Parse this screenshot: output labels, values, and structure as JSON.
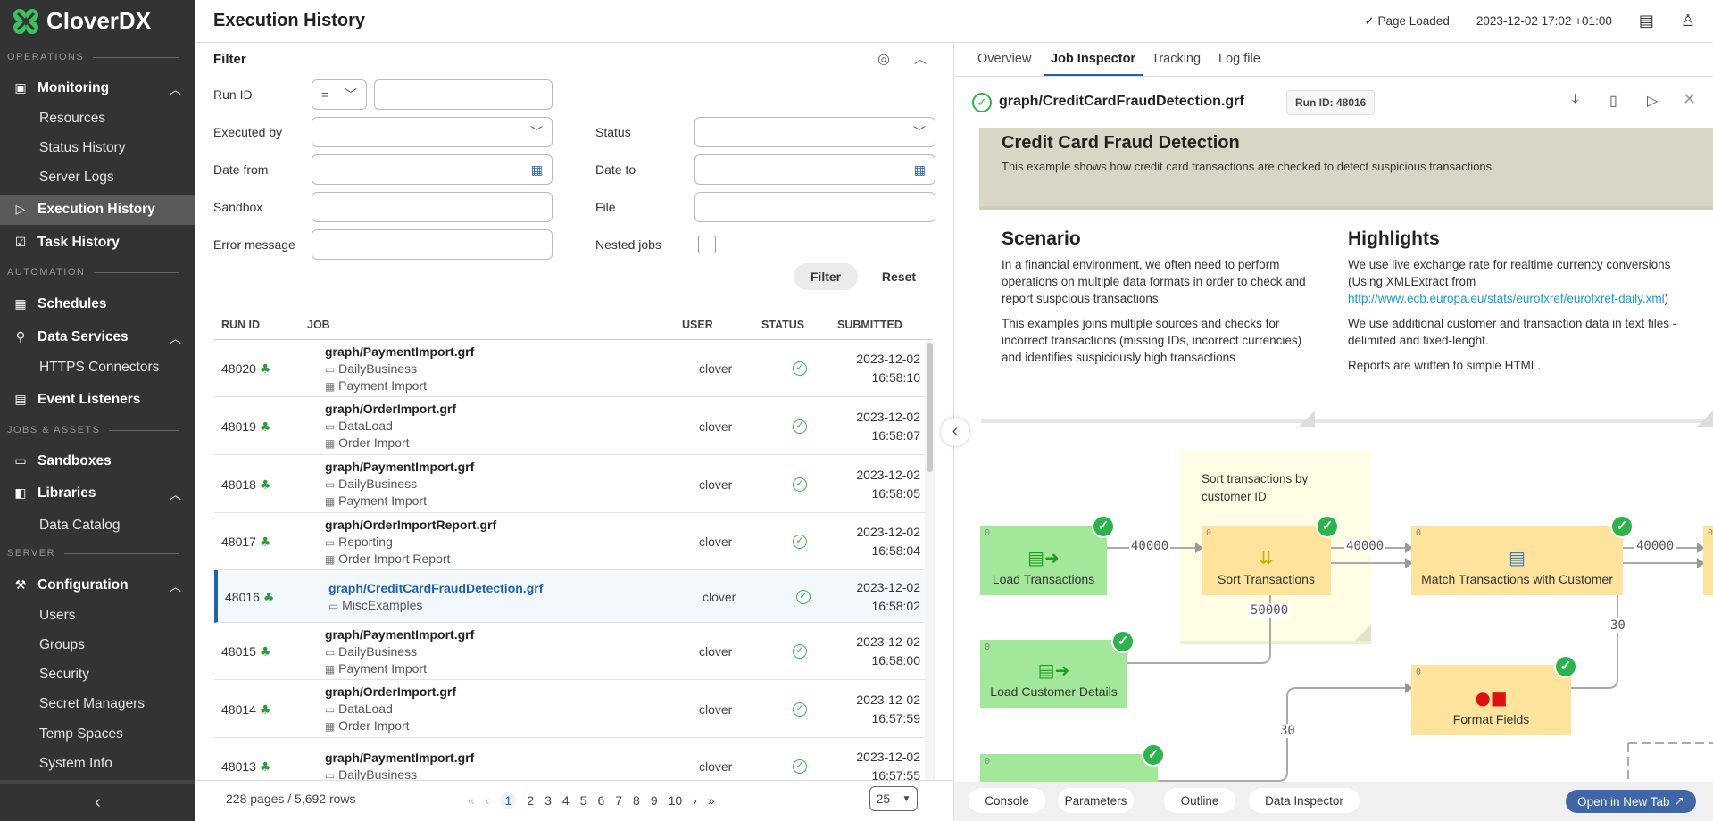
{
  "app": {
    "brand": "CloverDX",
    "title": "Execution History",
    "status": "Page Loaded",
    "datetime": "2023-12-02 17:02 +01:00"
  },
  "sidebar": {
    "sections": [
      "OPERATIONS",
      "AUTOMATION",
      "JOBS & ASSETS",
      "SERVER"
    ],
    "items": {
      "monitoring": "Monitoring",
      "resources": "Resources",
      "status_history": "Status History",
      "server_logs": "Server Logs",
      "execution_history": "Execution History",
      "task_history": "Task History",
      "schedules": "Schedules",
      "data_services": "Data Services",
      "https_connectors": "HTTPS Connectors",
      "event_listeners": "Event Listeners",
      "sandboxes": "Sandboxes",
      "libraries": "Libraries",
      "data_catalog": "Data Catalog",
      "configuration": "Configuration",
      "users": "Users",
      "groups": "Groups",
      "security": "Security",
      "secret_managers": "Secret Managers",
      "temp_spaces": "Temp Spaces",
      "system_info": "System Info"
    }
  },
  "filter": {
    "title": "Filter",
    "run_id": "Run ID",
    "run_id_op": "=",
    "executed_by": "Executed by",
    "status": "Status",
    "date_from": "Date from",
    "date_to": "Date to",
    "sandbox": "Sandbox",
    "file": "File",
    "error_message": "Error message",
    "nested_jobs": "Nested jobs",
    "filter_btn": "Filter",
    "reset_btn": "Reset"
  },
  "table": {
    "columns": [
      "RUN ID",
      "JOB",
      "USER",
      "STATUS",
      "SUBMITTED"
    ],
    "rows": [
      {
        "id": "48020",
        "job": "graph/PaymentImport.grf",
        "sandbox": "DailyBusiness",
        "schedule": "Payment Import",
        "user": "clover",
        "status": "success",
        "date": "2023-12-02",
        "time": "16:58:10"
      },
      {
        "id": "48019",
        "job": "graph/OrderImport.grf",
        "sandbox": "DataLoad",
        "schedule": "Order Import",
        "user": "clover",
        "status": "success",
        "date": "2023-12-02",
        "time": "16:58:07"
      },
      {
        "id": "48018",
        "job": "graph/PaymentImport.grf",
        "sandbox": "DailyBusiness",
        "schedule": "Payment Import",
        "user": "clover",
        "status": "success",
        "date": "2023-12-02",
        "time": "16:58:05"
      },
      {
        "id": "48017",
        "job": "graph/OrderImportReport.grf",
        "sandbox": "Reporting",
        "schedule": "Order Import Report",
        "user": "clover",
        "status": "success",
        "date": "2023-12-02",
        "time": "16:58:04"
      },
      {
        "id": "48016",
        "job": "graph/CreditCardFraudDetection.grf",
        "sandbox": "MiscExamples",
        "schedule": "",
        "user": "clover",
        "status": "success",
        "date": "2023-12-02",
        "time": "16:58:02",
        "selected": true
      },
      {
        "id": "48015",
        "job": "graph/PaymentImport.grf",
        "sandbox": "DailyBusiness",
        "schedule": "Payment Import",
        "user": "clover",
        "status": "success",
        "date": "2023-12-02",
        "time": "16:58:00"
      },
      {
        "id": "48014",
        "job": "graph/OrderImport.grf",
        "sandbox": "DataLoad",
        "schedule": "Order Import",
        "user": "clover",
        "status": "success",
        "date": "2023-12-02",
        "time": "16:57:59"
      },
      {
        "id": "48013",
        "job": "graph/PaymentImport.grf",
        "sandbox": "DailyBusiness",
        "schedule": "",
        "user": "clover",
        "status": "success",
        "date": "2023-12-02",
        "time": "16:57:55"
      }
    ]
  },
  "pagination": {
    "summary": "228 pages / 5,692 rows",
    "pages": [
      "1",
      "2",
      "3",
      "4",
      "5",
      "6",
      "7",
      "8",
      "9",
      "10"
    ],
    "current": "1",
    "page_size": "25"
  },
  "detail": {
    "tabs": [
      "Overview",
      "Job Inspector",
      "Tracking",
      "Log file"
    ],
    "active_tab": "Job Inspector",
    "job": "graph/CreditCardFraudDetection.grf",
    "run_id": "Run ID: 48016",
    "banner_title": "Credit Card Fraud Detection",
    "banner_text": "This example shows how credit card transactions are checked to detect suspicious transactions",
    "scenario_title": "Scenario",
    "scenario_p1": "In a financial environment, we often need to perform operations on multiple data formats in order to check and report suspcious transactions",
    "scenario_p2": "This examples joins multiple sources and checks for incorrect transactions (missing IDs, incorrect currencies) and identifies suspiciously high transactions",
    "highlights_title": "Highlights",
    "hl_p1": "We use live exchange rate for realtime currency conversions (Using XMLExtract from",
    "hl_link": "http://www.ecb.europa.eu/stats/eurofxref/eurofxref-daily.xml",
    "hl_p1_end": ")",
    "hl_p2": "We use additional customer and transaction data in text files - delimited and fixed-lenght.",
    "hl_p3": "Reports are written to simple HTML.",
    "note": "Sort transactions by customer ID",
    "nodes": {
      "load_transactions": "Load Transactions",
      "sort_transactions": "Sort Transactions",
      "match": "Match Transactions with Customer",
      "load_customer": "Load Customer Details",
      "format_fields": "Format Fields"
    },
    "port": "0",
    "edges": {
      "e1": "40000",
      "e2": "40000",
      "e3": "40000",
      "e4": "50000",
      "e5": "30",
      "e6": "30"
    },
    "bottom": {
      "console": "Console",
      "parameters": "Parameters",
      "outline": "Outline",
      "data_inspector": "Data Inspector",
      "open_new_tab": "Open in New Tab"
    }
  },
  "colors": {
    "accent": "#1e62b0",
    "success": "#2eb34c",
    "sidebar": "#333333",
    "reader_node": "#a3e89a",
    "transform_node": "#fde39c",
    "note": "#fffde3",
    "open_button": "#3f67a8"
  }
}
